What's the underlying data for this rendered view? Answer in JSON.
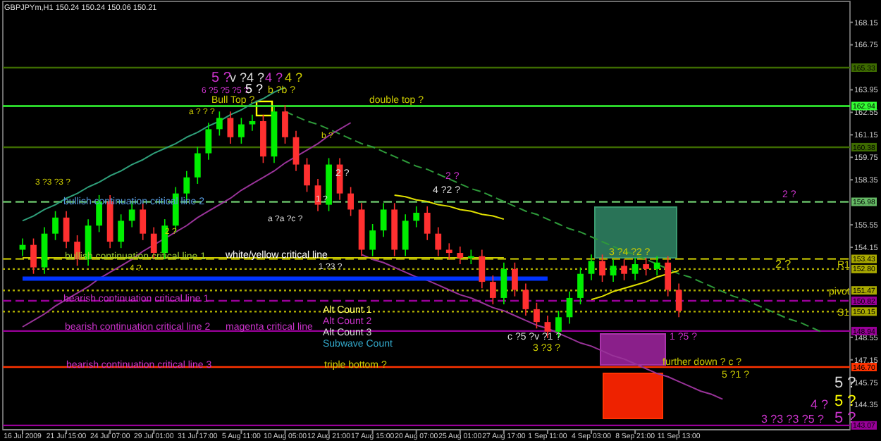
{
  "chart_data": {
    "type": "candlestick",
    "title": "GBPJPYm,H1 150.24 150.24 150.06 150.21",
    "categories": [
      "16 Jul 2009",
      null,
      null,
      null,
      "21 Jul 15:00",
      null,
      null,
      null,
      "24 Jul 07:00",
      null,
      null,
      null,
      "29 Jul 01:00",
      null,
      null,
      null,
      "31 Jul 17:00",
      null,
      null,
      null,
      "5 Aug 11:00",
      null,
      null,
      null,
      "10 Aug 05:00",
      null,
      null,
      null,
      "12 Aug 21:00",
      null,
      null,
      null,
      "17 Aug 15:00",
      null,
      null,
      null,
      "20 Aug 07:00",
      null,
      null,
      null,
      "25 Aug 01:00",
      null,
      null,
      null,
      "27 Aug 17:00",
      null,
      null,
      null,
      "1 Sep 11:00",
      null,
      null,
      null,
      "4 Sep 03:00",
      null,
      null,
      null,
      "8 Sep 21:00",
      null,
      null,
      null,
      "11 Sep 13:00",
      null,
      null,
      null,
      null,
      null,
      null,
      null,
      null,
      null,
      null,
      null,
      null,
      null,
      null,
      null
    ],
    "ohlc": [
      [
        154.0,
        154.7,
        153.6,
        154.3
      ],
      [
        154.3,
        154.7,
        152.5,
        152.9
      ],
      [
        152.9,
        155.4,
        152.5,
        155.0
      ],
      [
        155.0,
        156.4,
        154.6,
        156.0
      ],
      [
        156.0,
        156.4,
        154.1,
        154.5
      ],
      [
        154.5,
        154.9,
        153.0,
        153.4
      ],
      [
        153.4,
        155.9,
        153.0,
        155.5
      ],
      [
        155.5,
        157.4,
        155.1,
        157.0
      ],
      [
        157.0,
        157.4,
        154.1,
        154.5
      ],
      [
        154.5,
        156.2,
        154.1,
        155.8
      ],
      [
        155.8,
        156.9,
        155.4,
        156.5
      ],
      [
        156.5,
        156.9,
        154.6,
        155.0
      ],
      [
        155.0,
        155.4,
        153.4,
        153.8
      ],
      [
        153.8,
        155.9,
        153.4,
        155.5
      ],
      [
        155.5,
        157.9,
        155.1,
        157.5
      ],
      [
        157.5,
        158.9,
        157.1,
        158.5
      ],
      [
        158.5,
        160.4,
        158.1,
        160.0
      ],
      [
        160.0,
        161.9,
        159.6,
        161.5
      ],
      [
        161.5,
        162.6,
        161.1,
        162.2
      ],
      [
        162.2,
        162.6,
        160.6,
        161.0
      ],
      [
        161.0,
        162.2,
        160.6,
        161.8
      ],
      [
        161.8,
        162.4,
        161.4,
        162.0
      ],
      [
        162.0,
        162.4,
        159.4,
        159.8
      ],
      [
        159.8,
        163.0,
        159.4,
        162.6
      ],
      [
        162.6,
        163.0,
        160.6,
        161.0
      ],
      [
        161.0,
        161.4,
        158.9,
        159.3
      ],
      [
        159.3,
        159.7,
        157.6,
        158.0
      ],
      [
        158.0,
        158.4,
        156.4,
        156.8
      ],
      [
        156.8,
        159.7,
        156.4,
        159.3
      ],
      [
        159.3,
        159.7,
        157.1,
        157.5
      ],
      [
        157.5,
        157.9,
        156.1,
        156.5
      ],
      [
        156.5,
        156.9,
        153.6,
        154.0
      ],
      [
        154.0,
        155.6,
        153.6,
        155.2
      ],
      [
        155.2,
        156.9,
        154.8,
        156.5
      ],
      [
        156.5,
        156.9,
        153.6,
        154.0
      ],
      [
        154.0,
        156.2,
        153.6,
        155.8
      ],
      [
        155.8,
        156.7,
        155.4,
        156.3
      ],
      [
        156.3,
        156.7,
        154.6,
        155.0
      ],
      [
        155.0,
        155.4,
        153.6,
        154.0
      ],
      [
        154.0,
        154.4,
        153.4,
        153.8
      ],
      [
        153.8,
        154.2,
        153.1,
        153.5
      ],
      [
        153.5,
        154.0,
        153.1,
        153.6
      ],
      [
        153.6,
        154.0,
        151.6,
        152.0
      ],
      [
        152.0,
        152.4,
        150.6,
        151.0
      ],
      [
        151.0,
        153.2,
        150.6,
        152.8
      ],
      [
        152.8,
        153.2,
        151.1,
        151.5
      ],
      [
        151.5,
        151.9,
        149.9,
        150.3
      ],
      [
        150.3,
        150.7,
        149.1,
        149.5
      ],
      [
        149.5,
        149.9,
        148.5,
        148.9
      ],
      [
        148.9,
        150.2,
        148.5,
        149.8
      ],
      [
        149.8,
        151.4,
        149.4,
        151.0
      ],
      [
        151.0,
        152.9,
        150.6,
        152.5
      ],
      [
        152.5,
        153.7,
        152.1,
        153.3
      ],
      [
        153.3,
        153.7,
        152.0,
        152.4
      ],
      [
        152.4,
        153.4,
        152.0,
        153.0
      ],
      [
        153.0,
        153.4,
        152.1,
        152.5
      ],
      [
        152.5,
        153.5,
        152.1,
        153.1
      ],
      [
        153.1,
        153.5,
        152.4,
        152.8
      ],
      [
        152.8,
        153.6,
        152.4,
        153.2
      ],
      [
        153.2,
        153.6,
        151.1,
        151.5
      ],
      [
        151.5,
        151.9,
        149.8,
        150.2
      ],
      null,
      null,
      null,
      null,
      null,
      null,
      null,
      null,
      null,
      null,
      null,
      null,
      null,
      null,
      null
    ],
    "series": [
      {
        "type": "line",
        "color": "#2f9f7a",
        "values": [
          155.8,
          156.1,
          156.5,
          156.8,
          157.2,
          157.5,
          157.9,
          158.2,
          158.6,
          158.9,
          159.3,
          159.6,
          160.0,
          160.3,
          160.6,
          161.0,
          161.3,
          161.7,
          162.0,
          162.4,
          162.7,
          163.1,
          163.4,
          163.8,
          164.1,
          null,
          null,
          null,
          null,
          null,
          null,
          null,
          null,
          null,
          null,
          null,
          null,
          null,
          null,
          null,
          null,
          null,
          null,
          null,
          null,
          null,
          null,
          null,
          null,
          null,
          null,
          null,
          null,
          null,
          null,
          null,
          null,
          null,
          null,
          null,
          null,
          null,
          null,
          null,
          null,
          null,
          null,
          null,
          null,
          null,
          null,
          null,
          null,
          null,
          null,
          null
        ]
      },
      {
        "type": "line",
        "color": "#2e9a3a",
        "line_style": "dashed",
        "values": [
          null,
          null,
          null,
          null,
          null,
          null,
          null,
          null,
          null,
          null,
          null,
          null,
          null,
          null,
          null,
          null,
          null,
          null,
          null,
          null,
          null,
          null,
          null,
          null,
          162.6,
          162.3,
          162.0,
          161.8,
          161.5,
          161.2,
          160.9,
          160.6,
          160.4,
          160.1,
          159.8,
          159.5,
          159.2,
          159.0,
          158.7,
          158.4,
          158.1,
          157.8,
          157.6,
          157.3,
          157.0,
          156.7,
          156.4,
          156.2,
          155.9,
          155.6,
          155.3,
          155.1,
          154.8,
          154.5,
          154.2,
          153.9,
          153.7,
          153.4,
          153.1,
          152.8,
          152.5,
          152.3,
          152.0,
          151.7,
          151.4,
          151.1,
          150.9,
          150.6,
          150.3,
          150.0,
          149.7,
          149.5,
          149.2,
          148.9,
          null,
          null
        ]
      },
      {
        "type": "line",
        "color": "#993399",
        "values": [
          149.2,
          149.6,
          150.0,
          150.5,
          150.9,
          151.3,
          151.7,
          152.2,
          152.6,
          153.0,
          153.4,
          153.9,
          154.3,
          154.7,
          155.1,
          155.5,
          156.0,
          156.4,
          156.8,
          157.2,
          157.7,
          158.1,
          158.5,
          158.9,
          159.4,
          159.8,
          160.2,
          160.6,
          161.1,
          161.5,
          161.9,
          null,
          null,
          null,
          null,
          null,
          null,
          null,
          null,
          null,
          null,
          null,
          null,
          null,
          null,
          null,
          null,
          null,
          null,
          null,
          null,
          null,
          null,
          null,
          null,
          null,
          null,
          null,
          null,
          null,
          null,
          null,
          null,
          null,
          null,
          null,
          null,
          null,
          null,
          null,
          null,
          null,
          null,
          null,
          null,
          null
        ]
      },
      {
        "type": "line",
        "color": "#993399",
        "values": [
          null,
          null,
          null,
          null,
          null,
          null,
          null,
          null,
          null,
          null,
          null,
          null,
          null,
          null,
          null,
          null,
          null,
          null,
          null,
          null,
          null,
          null,
          null,
          null,
          null,
          null,
          null,
          null,
          null,
          null,
          null,
          153.7,
          153.4,
          153.2,
          152.9,
          152.6,
          152.3,
          152.1,
          151.8,
          151.5,
          151.2,
          151.0,
          150.7,
          150.4,
          150.2,
          149.9,
          149.6,
          149.3,
          149.1,
          148.8,
          148.5,
          148.2,
          148.0,
          147.7,
          147.4,
          147.2,
          146.9,
          146.6,
          146.3,
          146.1,
          145.8,
          145.5,
          145.2,
          145.0,
          144.7,
          null,
          null,
          null,
          null,
          null,
          null,
          null,
          null,
          null,
          null,
          null
        ]
      },
      {
        "type": "line",
        "color": "#e0e000",
        "values": [
          null,
          null,
          null,
          null,
          null,
          null,
          null,
          null,
          null,
          null,
          null,
          null,
          null,
          null,
          null,
          null,
          null,
          null,
          null,
          null,
          null,
          null,
          null,
          null,
          null,
          null,
          null,
          null,
          null,
          null,
          null,
          null,
          null,
          null,
          157.4,
          157.3,
          157.1,
          157.0,
          156.8,
          156.7,
          156.5,
          156.4,
          156.2,
          156.1,
          155.9,
          null,
          null,
          null,
          null,
          null,
          null,
          null,
          null,
          null,
          null,
          null,
          null,
          null,
          null,
          null,
          null,
          null,
          null,
          null,
          null,
          null,
          null,
          null,
          null,
          null,
          null,
          null,
          null,
          null,
          null,
          null
        ]
      },
      {
        "type": "line",
        "color": "#e0e000",
        "values": [
          null,
          null,
          null,
          null,
          null,
          null,
          null,
          null,
          null,
          null,
          null,
          null,
          null,
          null,
          null,
          null,
          null,
          null,
          null,
          null,
          null,
          null,
          null,
          null,
          null,
          null,
          null,
          null,
          null,
          null,
          null,
          null,
          null,
          null,
          null,
          null,
          null,
          null,
          null,
          null,
          null,
          null,
          null,
          null,
          null,
          null,
          null,
          null,
          null,
          null,
          null,
          null,
          150.9,
          151.1,
          151.4,
          151.6,
          151.8,
          152.0,
          152.3,
          152.5,
          152.7,
          null,
          null,
          null,
          null,
          null,
          null,
          null,
          null,
          null,
          null,
          null,
          null,
          null,
          null,
          null
        ]
      },
      {
        "type": "line",
        "color": "#0033ff",
        "values": [
          152.2,
          152.2,
          152.2,
          152.2,
          152.2,
          152.2,
          152.2,
          152.2,
          152.2,
          152.2,
          152.2,
          152.2,
          152.2,
          152.2,
          152.2,
          152.2,
          152.2,
          152.2,
          152.2,
          152.2,
          152.2,
          152.2,
          152.2,
          152.2,
          152.2,
          152.2,
          152.2,
          152.2,
          152.2,
          152.2,
          152.2,
          152.2,
          152.2,
          152.2,
          152.2,
          152.2,
          152.2,
          152.2,
          152.2,
          152.2,
          152.2,
          152.2,
          152.2,
          152.2,
          152.2,
          152.2,
          152.2,
          152.2,
          152.2,
          null,
          null,
          null,
          null,
          null,
          null,
          null,
          null,
          null,
          null,
          null,
          null,
          null,
          null,
          null,
          null,
          null,
          null,
          null,
          null,
          null,
          null,
          null,
          null,
          null,
          null,
          null
        ]
      },
      {
        "type": "line",
        "color": "#cccc00",
        "values": [
          153.5,
          153.5,
          153.5,
          153.5,
          153.5,
          153.5,
          153.5,
          153.5,
          153.5,
          153.5,
          153.5,
          153.5,
          153.5,
          153.5,
          153.5,
          153.5,
          153.5,
          153.5,
          153.5,
          153.5,
          153.5,
          153.5,
          153.5,
          153.5,
          153.5,
          153.5,
          153.5,
          153.5,
          153.5,
          153.5,
          153.5,
          153.5,
          153.5,
          153.5,
          153.5,
          153.5,
          153.5,
          153.5,
          153.5,
          153.5,
          153.5,
          153.5,
          153.5,
          153.5,
          153.5,
          null,
          null,
          null,
          null,
          null,
          null,
          null,
          null,
          null,
          null,
          null,
          null,
          null,
          null,
          null,
          null,
          null,
          null,
          null,
          null,
          null,
          null,
          null,
          null,
          null,
          null,
          null,
          null,
          null,
          null,
          null
        ]
      }
    ],
    "ylim": [
      142.8,
      169.45
    ],
    "yticks": [
      168.15,
      166.75,
      163.95,
      162.55,
      161.15,
      159.75,
      158.35,
      155.55,
      154.15,
      148.55,
      147.15,
      145.75,
      144.35
    ],
    "ref_lines": [
      {
        "axis": "y",
        "value": 165.33,
        "label": "165.33",
        "color": "#3d6b00",
        "line_style": "solid"
      },
      {
        "axis": "y",
        "value": 162.94,
        "label": "162.94",
        "color": "#33ff33",
        "line_style": "solid"
      },
      {
        "axis": "y",
        "value": 160.38,
        "label": "160.38",
        "color": "#3d6b00",
        "line_style": "solid"
      },
      {
        "axis": "y",
        "value": 156.98,
        "label": "156.98",
        "color": "#66bb66",
        "line_style": "dashed"
      },
      {
        "axis": "y",
        "value": 153.43,
        "label": "153.43",
        "color": "#aaaa00",
        "line_style": "dashed"
      },
      {
        "axis": "y",
        "value": 152.8,
        "label": "152.80",
        "color": "#aaaa00",
        "line_style": "dotted"
      },
      {
        "axis": "y",
        "value": 151.47,
        "label": "151.47",
        "color": "#aaaa00",
        "line_style": "dotted"
      },
      {
        "axis": "y",
        "value": 150.82,
        "label": "150.82",
        "color": "#990099",
        "line_style": "dashed"
      },
      {
        "axis": "y",
        "value": 150.15,
        "label": "150.15",
        "color": "#aaaa00",
        "line_style": "dotted"
      },
      {
        "axis": "y",
        "value": 148.94,
        "label": "148.94",
        "color": "#990099",
        "line_style": "solid"
      },
      {
        "axis": "y",
        "value": 146.7,
        "label": "146.70",
        "color": "#ff3300",
        "line_style": "solid"
      },
      {
        "axis": "y",
        "value": 143.07,
        "label": "143.07",
        "color": "#990099",
        "line_style": "solid"
      }
    ],
    "annotations": [
      "5 ?",
      "v ?4 ?",
      "4 ?",
      "4 ?",
      "6 ?5 ?5 ?5 ?",
      "5 ?",
      "b ?b ?",
      "Bull Top ?",
      "double top ?",
      "a ? ? ?",
      "b ?",
      "2 ?",
      "1 ?",
      "3 ?3 ?3 ?",
      "4 ?2 ?",
      "2 ?",
      "a ?a ?c ?",
      "2 ?",
      "2 ?",
      "bullish continuation critical line 2",
      "bullish continuation critical line 1",
      "white/yellow critical line",
      "bearish continuation critical line 1",
      "bearish continuation critical line 2",
      "magenta critical line",
      "bearish continuation critical line 3",
      "Alt Count 1",
      "Alt Count 2",
      "Alt Count 3",
      "Subwave Count",
      "triple bottom ?",
      "further down ? c ?",
      "1 ?5 ?",
      "c ?5 ?v ?1 ?",
      "3 ?3 ?",
      "5 ?1 ?",
      "5 ?",
      "5 ?",
      "4 ?",
      "3 ?3 ?3 ?5 ?",
      "5 ?",
      "R1",
      "pivot",
      "S1",
      "1 ?3 ?",
      "4 ?",
      "3 ?4 ?2 ?",
      "2 ?"
    ]
  }
}
